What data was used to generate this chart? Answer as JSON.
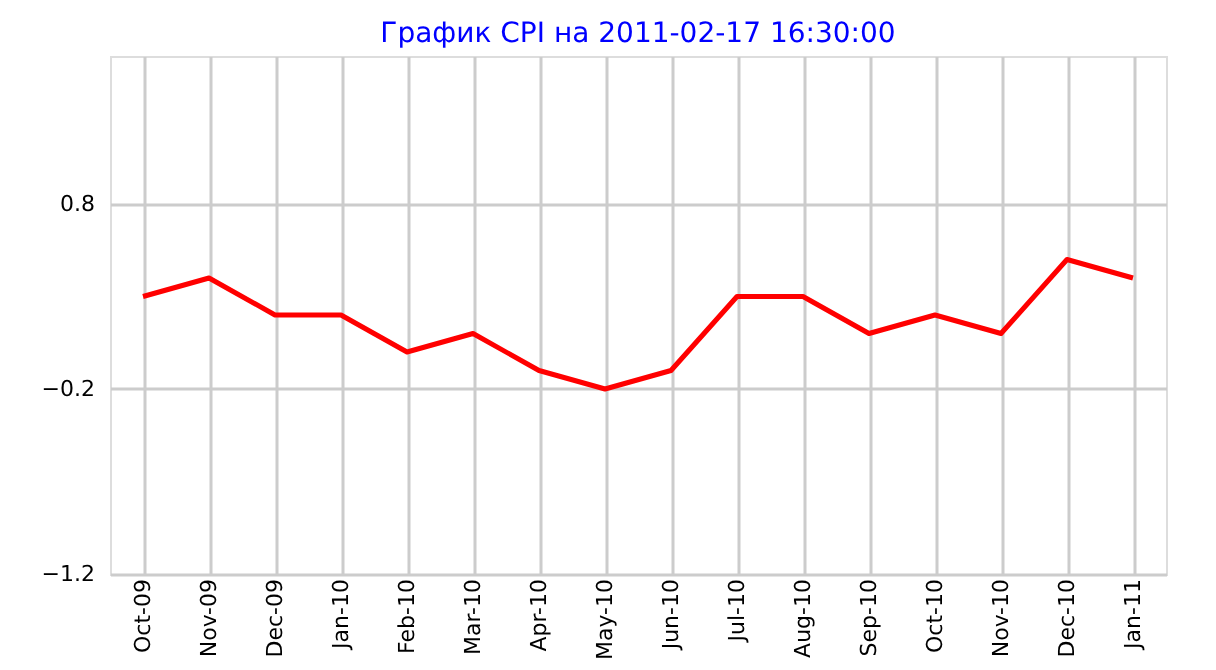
{
  "chart_data": {
    "type": "line",
    "title": "График CPI на 2011-02-17 16:30:00",
    "categories": [
      "Oct-09",
      "Nov-09",
      "Dec-09",
      "Jan-10",
      "Feb-10",
      "Mar-10",
      "Apr-10",
      "May-10",
      "Jun-10",
      "Jul-10",
      "Aug-10",
      "Sep-10",
      "Oct-10",
      "Nov-10",
      "Dec-10",
      "Jan-11"
    ],
    "series": [
      {
        "color": "#ff0000",
        "values": [
          0.3,
          0.4,
          0.2,
          0.2,
          0.0,
          0.1,
          -0.1,
          -0.2,
          -0.1,
          0.3,
          0.3,
          0.1,
          0.2,
          0.1,
          0.5,
          0.4
        ]
      }
    ],
    "ylim": [
      -1.2,
      1.6
    ],
    "yticks": [
      -1.2,
      -0.2,
      0.8
    ],
    "grid": true,
    "legend": false,
    "marker": "none",
    "line_style": "solid"
  }
}
